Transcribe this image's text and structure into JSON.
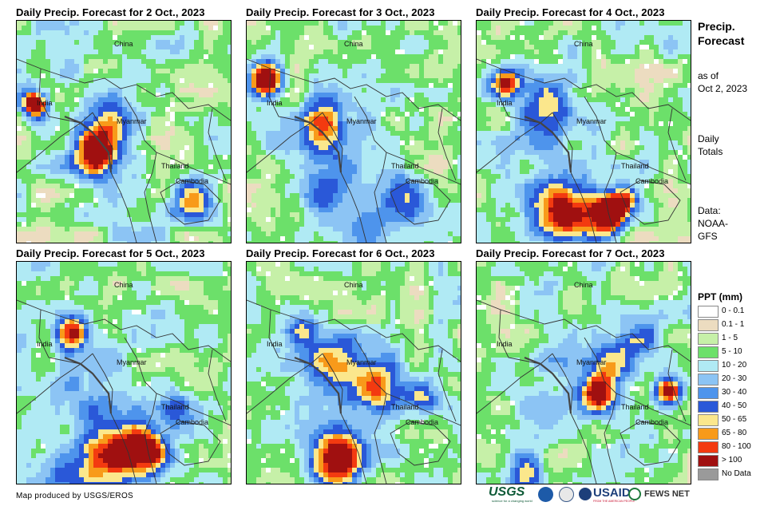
{
  "panels": [
    {
      "title": "Daily Precip. Forecast for 2 Oct., 2023",
      "day": 0
    },
    {
      "title": "Daily Precip. Forecast for 3 Oct., 2023",
      "day": 1
    },
    {
      "title": "Daily Precip. Forecast for 4 Oct., 2023",
      "day": 2
    },
    {
      "title": "Daily Precip. Forecast for 5 Oct., 2023",
      "day": 3
    },
    {
      "title": "Daily Precip. Forecast for 6 Oct., 2023",
      "day": 4
    },
    {
      "title": "Daily Precip. Forecast for 7 Oct., 2023",
      "day": 5
    }
  ],
  "labels": {
    "china": "China",
    "india": "India",
    "myanmar": "Myanmar",
    "thailand": "Thailand",
    "cambodia": "Cambodia"
  },
  "side": {
    "title_line1": "Precip.",
    "title_line2": "Forecast",
    "asof_line1": "as of",
    "asof_line2": "Oct 2, 2023",
    "daily_line1": "Daily",
    "daily_line2": "Totals",
    "data_line1": "Data:",
    "data_line2": "NOAA-",
    "data_line3": "GFS"
  },
  "legend": {
    "title": "PPT (mm)",
    "items": [
      {
        "label": "0 - 0.1",
        "color": "#ffffff"
      },
      {
        "label": "0.1 - 1",
        "color": "#ecdcc0"
      },
      {
        "label": "1 - 5",
        "color": "#c6f0a8"
      },
      {
        "label": "5 - 10",
        "color": "#6ce06a"
      },
      {
        "label": "10 - 20",
        "color": "#b0eaf4"
      },
      {
        "label": "20 - 30",
        "color": "#8cc4f4"
      },
      {
        "label": "30 - 40",
        "color": "#4e94ec"
      },
      {
        "label": "40 - 50",
        "color": "#2a58d8"
      },
      {
        "label": "50 - 65",
        "color": "#fbe78c"
      },
      {
        "label": "65 - 80",
        "color": "#f89a1a"
      },
      {
        "label": "80 - 100",
        "color": "#f33a10"
      },
      {
        "label": "> 100",
        "color": "#a01010"
      },
      {
        "label": "No Data",
        "color": "#9a9a9a"
      }
    ]
  },
  "credit": "Map produced by USGS/EROS",
  "logos": {
    "usgs": "USGS",
    "usgs_tag": "science for a changing world",
    "usaid": "USAID",
    "usaid_tag": "FROM THE AMERICAN PEOPLE",
    "fewsnet": "FEWS NET"
  }
}
